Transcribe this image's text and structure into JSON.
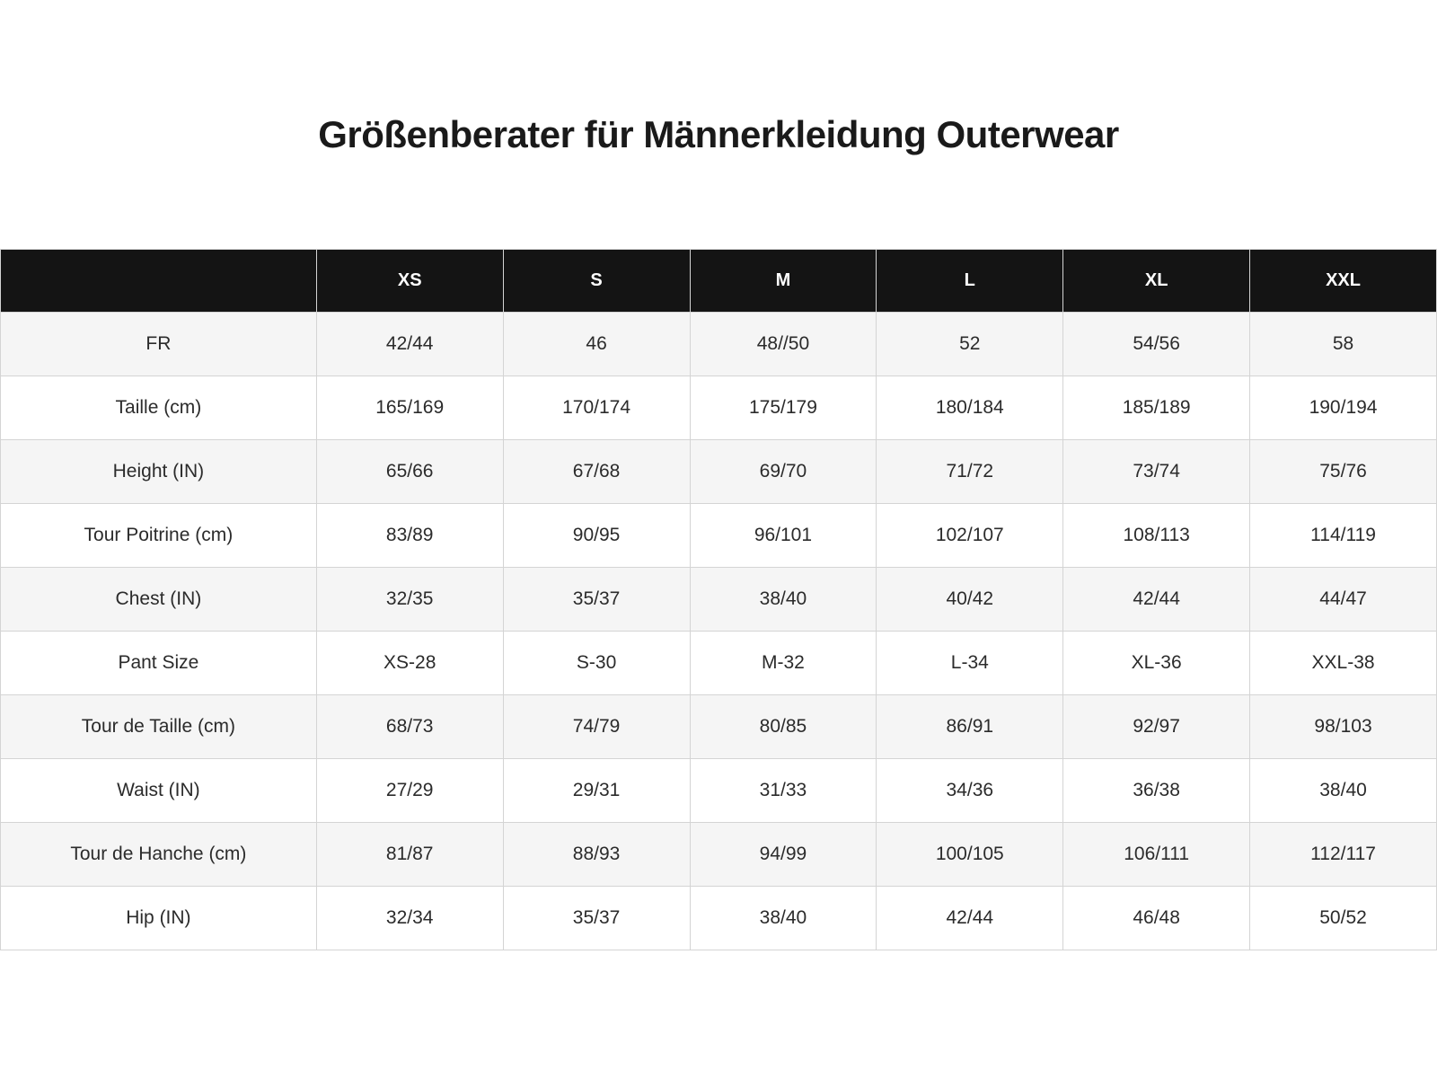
{
  "page": {
    "title": "Größenberater für Männerkleidung Outerwear"
  },
  "table": {
    "corner_label": "",
    "columns": [
      "XS",
      "S",
      "M",
      "L",
      "XL",
      "XXL"
    ],
    "rows": [
      {
        "label": "FR",
        "values": [
          "42/44",
          "46",
          "48//50",
          "52",
          "54/56",
          "58"
        ]
      },
      {
        "label": "Taille (cm)",
        "values": [
          "165/169",
          "170/174",
          "175/179",
          "180/184",
          "185/189",
          "190/194"
        ]
      },
      {
        "label": "Height (IN)",
        "values": [
          "65/66",
          "67/68",
          "69/70",
          "71/72",
          "73/74",
          "75/76"
        ]
      },
      {
        "label": "Tour Poitrine (cm)",
        "values": [
          "83/89",
          "90/95",
          "96/101",
          "102/107",
          "108/113",
          "114/119"
        ]
      },
      {
        "label": "Chest (IN)",
        "values": [
          "32/35",
          "35/37",
          "38/40",
          "40/42",
          "42/44",
          "44/47"
        ]
      },
      {
        "label": "Pant Size",
        "values": [
          "XS-28",
          "S-30",
          "M-32",
          "L-34",
          "XL-36",
          "XXL-38"
        ]
      },
      {
        "label": "Tour de Taille (cm)",
        "values": [
          "68/73",
          "74/79",
          "80/85",
          "86/91",
          "92/97",
          "98/103"
        ]
      },
      {
        "label": "Waist (IN)",
        "values": [
          "27/29",
          "29/31",
          "31/33",
          "34/36",
          "36/38",
          "38/40"
        ]
      },
      {
        "label": "Tour de Hanche (cm)",
        "values": [
          "81/87",
          "88/93",
          "94/99",
          "100/105",
          "106/111",
          "112/117"
        ]
      },
      {
        "label": "Hip (IN)",
        "values": [
          "32/34",
          "35/37",
          "38/40",
          "42/44",
          "46/48",
          "50/52"
        ]
      }
    ],
    "colors": {
      "header_bg": "#141414",
      "header_text": "#ffffff",
      "row_alt_bg": "#f5f5f5",
      "row_bg": "#ffffff",
      "border": "#d4d4d4",
      "text": "#2b2b2b",
      "title_color": "#1a1a1a"
    }
  }
}
